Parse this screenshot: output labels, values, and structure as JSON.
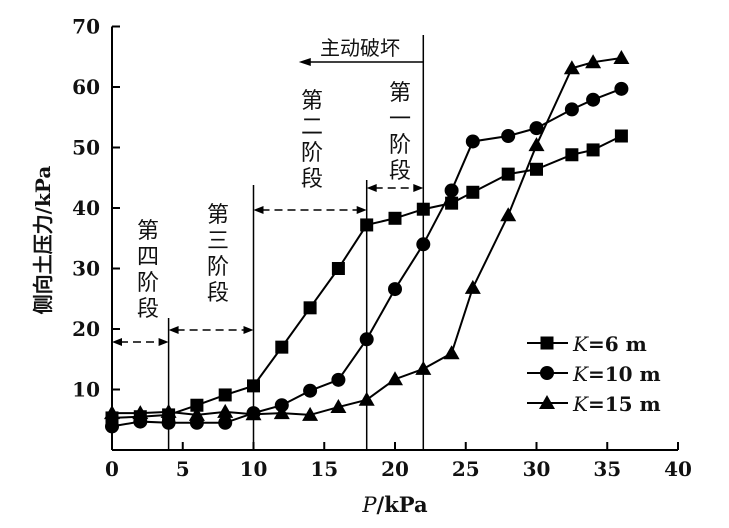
{
  "chart_data": {
    "type": "line",
    "title": "",
    "xlabel_italic": "P",
    "xlabel_unit": "/kPa",
    "ylabel": "侧向土压力/kPa",
    "xlim": [
      0,
      40
    ],
    "ylim": [
      0,
      70
    ],
    "xticks": [
      0,
      5,
      10,
      15,
      20,
      25,
      30,
      35,
      40
    ],
    "yticks": [
      10,
      20,
      30,
      40,
      50,
      60,
      70
    ],
    "grid": false,
    "legend_position": "bottom-right",
    "series": [
      {
        "name_italic": "K",
        "name_rest": "=6 m",
        "marker": "square",
        "x": [
          0,
          2,
          4,
          6,
          8,
          10,
          12,
          14,
          16,
          18,
          20,
          22,
          24,
          25.5,
          28,
          30,
          32.5,
          34,
          36
        ],
        "y": [
          5.3,
          5.5,
          5.8,
          7.4,
          9.1,
          10.6,
          17,
          23.5,
          30,
          37.2,
          38.3,
          39.8,
          40.8,
          42.6,
          45.6,
          46.4,
          48.8,
          49.6,
          51.9
        ]
      },
      {
        "name_italic": "K",
        "name_rest": "=10 m",
        "marker": "circle",
        "x": [
          0,
          2,
          4,
          6,
          8,
          10,
          12,
          14,
          16,
          18,
          20,
          22,
          24,
          25.5,
          28,
          30,
          32.5,
          34,
          36
        ],
        "y": [
          3.9,
          4.7,
          4.5,
          4.5,
          4.5,
          6.1,
          7.4,
          9.8,
          11.6,
          18.3,
          26.6,
          34,
          42.9,
          51,
          51.9,
          53.2,
          56.3,
          57.9,
          59.7
        ]
      },
      {
        "name_italic": "K",
        "name_rest": "=15 m",
        "marker": "triangle",
        "x": [
          0,
          2,
          4,
          6,
          8,
          10,
          12,
          14,
          16,
          18,
          20,
          22,
          24,
          25.5,
          28,
          30,
          32.5,
          34,
          36
        ],
        "y": [
          6.1,
          6.1,
          6.3,
          5.8,
          6.3,
          5.9,
          6.1,
          5.8,
          7.1,
          8.3,
          11.7,
          13.4,
          16,
          26.8,
          38.8,
          50.4,
          63.1,
          64.1,
          64.8
        ]
      }
    ],
    "annotations": {
      "active_failure": "主动破坏",
      "stage1": [
        "第",
        "一",
        "阶",
        "段"
      ],
      "stage2": [
        "第",
        "二",
        "阶",
        "段"
      ],
      "stage3": [
        "第",
        "三",
        "阶",
        "段"
      ],
      "stage4": [
        "第",
        "四",
        "阶",
        "段"
      ],
      "boundaries_kpa": [
        0,
        4,
        10,
        18,
        22
      ]
    }
  }
}
